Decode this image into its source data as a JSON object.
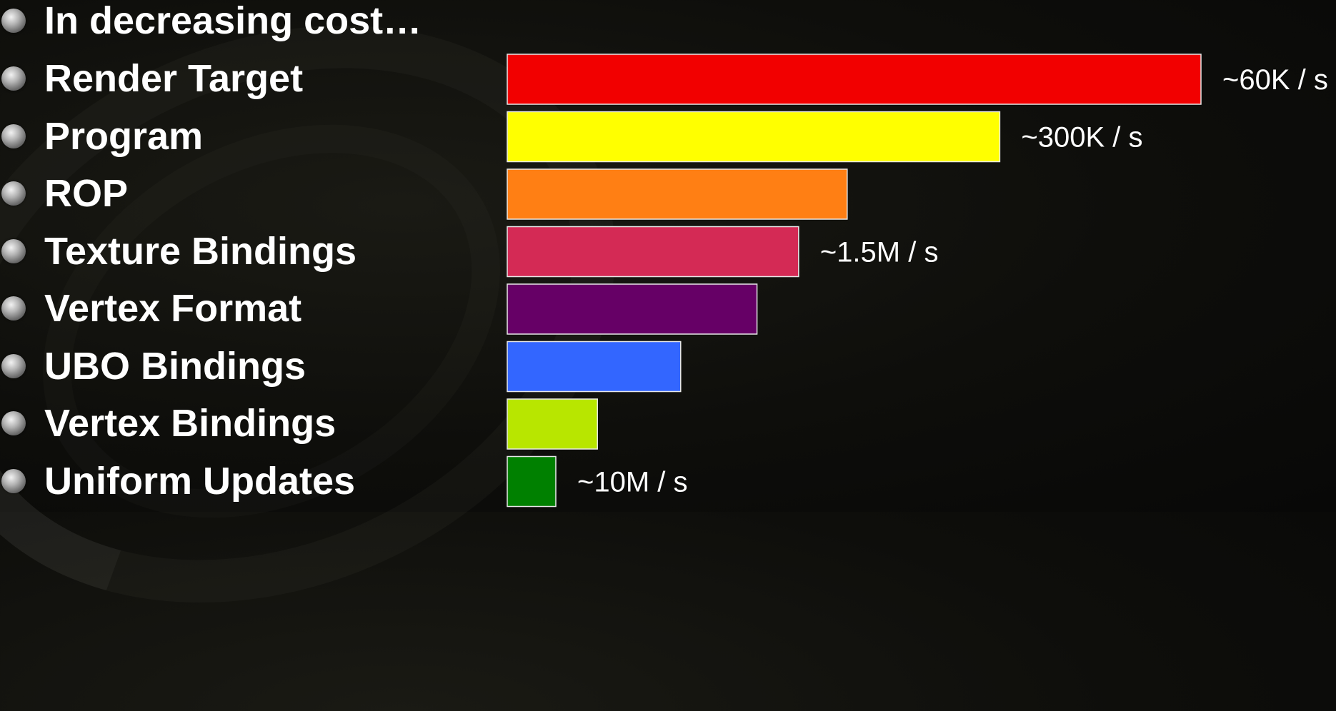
{
  "heading": "In decreasing cost…",
  "chart_data": {
    "type": "bar",
    "orientation": "horizontal",
    "categories": [
      "Render Target",
      "Program",
      "ROP",
      "Texture Bindings",
      "Vertex Format",
      "UBO Bindings",
      "Vertex Bindings",
      "Uniform Updates"
    ],
    "values": [
      100,
      71,
      49,
      42,
      36,
      25,
      13,
      7
    ],
    "colors": [
      "#f20000",
      "#ffff00",
      "#ff7f14",
      "#d42a55",
      "#660066",
      "#3366ff",
      "#b8e600",
      "#008000"
    ],
    "annotations": [
      {
        "category": "Render Target",
        "text": "~60K / s"
      },
      {
        "category": "Program",
        "text": "~300K / s"
      },
      {
        "category": "Texture Bindings",
        "text": "~1.5M / s"
      },
      {
        "category": "Uniform Updates",
        "text": "~10M / s"
      }
    ],
    "xlim": [
      0,
      100
    ],
    "grid": false,
    "legend": "none"
  }
}
